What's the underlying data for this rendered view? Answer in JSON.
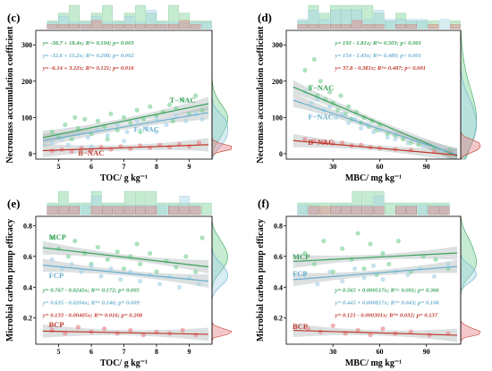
{
  "colors": {
    "green": "#3aa35a",
    "green_fill": "#7fd39a",
    "blue": "#6ab0cf",
    "blue_fill": "#a9d4e6",
    "red": "#c0392b",
    "red_fill": "#e6868a",
    "band": "#9aa6a8"
  },
  "chart_data": [
    {
      "panel": "(c)",
      "type": "scatter",
      "xlabel": "TOC/ g kg⁻¹",
      "ylabel": "Necromass accumulation coefficient",
      "xlim": [
        4.3,
        9.7
      ],
      "ylim": [
        -15,
        340
      ],
      "xticks": [
        5,
        6,
        7,
        8,
        9
      ],
      "yticks": [
        0,
        100,
        200,
        300
      ],
      "series": [
        {
          "name": "T−NAC",
          "color": "green",
          "intercept": -38.7,
          "slope": 18.4,
          "equation": "y= -38.7 + 18.4x; R²= 0.194; p= 0.003",
          "label_x": 8.4,
          "label_y": 140,
          "points": [
            [
              4.8,
              60
            ],
            [
              5.0,
              45
            ],
            [
              5.2,
              80
            ],
            [
              5.4,
              40
            ],
            [
              5.6,
              70
            ],
            [
              5.8,
              95
            ],
            [
              6.0,
              55
            ],
            [
              6.2,
              90
            ],
            [
              6.4,
              75
            ],
            [
              6.6,
              110
            ],
            [
              6.8,
              65
            ],
            [
              7.0,
              100
            ],
            [
              7.2,
              85
            ],
            [
              7.4,
              120
            ],
            [
              7.6,
              95
            ],
            [
              7.8,
              130
            ],
            [
              8.0,
              105
            ],
            [
              8.2,
              115
            ],
            [
              8.4,
              135
            ],
            [
              8.6,
              125
            ],
            [
              8.8,
              150
            ],
            [
              9.0,
              110
            ],
            [
              9.2,
              160
            ],
            [
              9.4,
              120
            ],
            [
              5.5,
              100
            ],
            [
              6.5,
              40
            ],
            [
              7.5,
              60
            ],
            [
              8.5,
              90
            ]
          ]
        },
        {
          "name": "F−NAC",
          "color": "blue",
          "intercept": -32.6,
          "slope": 15.2,
          "equation": "y= -32.6 + 15.2x; R²= 0.208; p= 0.002",
          "label_x": 7.3,
          "label_y": 60,
          "points": [
            [
              4.8,
              30
            ],
            [
              5.1,
              40
            ],
            [
              5.3,
              25
            ],
            [
              5.6,
              55
            ],
            [
              5.9,
              45
            ],
            [
              6.2,
              70
            ],
            [
              6.5,
              50
            ],
            [
              6.8,
              80
            ],
            [
              7.1,
              60
            ],
            [
              7.4,
              90
            ],
            [
              7.7,
              70
            ],
            [
              8.0,
              95
            ],
            [
              8.3,
              80
            ],
            [
              8.6,
              105
            ],
            [
              8.9,
              90
            ],
            [
              9.2,
              110
            ],
            [
              9.4,
              95
            ],
            [
              6.0,
              20
            ],
            [
              7.0,
              35
            ],
            [
              8.0,
              60
            ]
          ]
        },
        {
          "name": "B−NAC",
          "color": "red",
          "intercept": -6.14,
          "slope": 3.22,
          "equation": "y= -6.14 + 3.22x; R²= 0.121; p= 0.016",
          "label_x": 5.6,
          "label_y": -5,
          "points": [
            [
              4.8,
              8
            ],
            [
              5.1,
              12
            ],
            [
              5.4,
              6
            ],
            [
              5.7,
              15
            ],
            [
              6.0,
              10
            ],
            [
              6.3,
              18
            ],
            [
              6.6,
              12
            ],
            [
              6.9,
              20
            ],
            [
              7.2,
              14
            ],
            [
              7.5,
              22
            ],
            [
              7.8,
              16
            ],
            [
              8.1,
              24
            ],
            [
              8.4,
              18
            ],
            [
              8.7,
              26
            ],
            [
              9.0,
              20
            ],
            [
              9.3,
              30
            ]
          ]
        }
      ]
    },
    {
      "panel": "(d)",
      "type": "scatter",
      "xlabel": "MBC/ mg kg⁻¹",
      "ylabel": "Necromass accumulation coefficient",
      "xlim": [
        0,
        112
      ],
      "ylim": [
        -15,
        340
      ],
      "xticks": [
        30,
        60,
        90
      ],
      "yticks": [
        0,
        100,
        200,
        300
      ],
      "series": [
        {
          "name": "T−NAC",
          "color": "green",
          "intercept": 192,
          "slope": -1.81,
          "equation": "y= 192 - 1.81x; R²= 0.503; p< 0.001",
          "label_x": 14,
          "label_y": 175,
          "points": [
            [
              12,
              230
            ],
            [
              15,
              180
            ],
            [
              18,
              260
            ],
            [
              20,
              160
            ],
            [
              22,
              200
            ],
            [
              25,
              150
            ],
            [
              28,
              170
            ],
            [
              30,
              140
            ],
            [
              33,
              120
            ],
            [
              35,
              160
            ],
            [
              38,
              110
            ],
            [
              40,
              130
            ],
            [
              42,
              95
            ],
            [
              45,
              115
            ],
            [
              48,
              85
            ],
            [
              50,
              100
            ],
            [
              53,
              75
            ],
            [
              55,
              90
            ],
            [
              58,
              65
            ],
            [
              60,
              80
            ],
            [
              65,
              55
            ],
            [
              70,
              50
            ],
            [
              75,
              40
            ],
            [
              80,
              30
            ],
            [
              85,
              25
            ],
            [
              95,
              15
            ],
            [
              105,
              10
            ]
          ]
        },
        {
          "name": "F−NAC",
          "color": "blue",
          "intercept": 154,
          "slope": -1.43,
          "equation": "y= 154 - 1.43x; R²= 0.489; p< 0.001",
          "label_x": 14,
          "label_y": 95,
          "points": [
            [
              12,
              170
            ],
            [
              16,
              140
            ],
            [
              20,
              150
            ],
            [
              24,
              120
            ],
            [
              28,
              130
            ],
            [
              32,
              100
            ],
            [
              36,
              110
            ],
            [
              40,
              85
            ],
            [
              44,
              95
            ],
            [
              48,
              70
            ],
            [
              52,
              80
            ],
            [
              56,
              60
            ],
            [
              60,
              65
            ],
            [
              65,
              45
            ],
            [
              70,
              40
            ],
            [
              78,
              30
            ],
            [
              88,
              20
            ],
            [
              100,
              10
            ]
          ]
        },
        {
          "name": "B−NAC",
          "color": "red",
          "intercept": 37.8,
          "slope": -0.381,
          "equation": "y= 37.8 - 0.381x; R²= 0.487; p< 0.001",
          "label_x": 14,
          "label_y": 25,
          "points": [
            [
              12,
              40
            ],
            [
              18,
              35
            ],
            [
              24,
              32
            ],
            [
              30,
              28
            ],
            [
              36,
              30
            ],
            [
              42,
              22
            ],
            [
              48,
              24
            ],
            [
              54,
              18
            ],
            [
              60,
              16
            ],
            [
              70,
              12
            ],
            [
              80,
              10
            ],
            [
              95,
              6
            ],
            [
              105,
              3
            ]
          ]
        }
      ]
    },
    {
      "panel": "(e)",
      "type": "scatter",
      "xlabel": "TOC/ g kg⁻¹",
      "ylabel": "Microbial carbon pump efficacy",
      "xlim": [
        4.3,
        9.7
      ],
      "ylim": [
        0.03,
        0.86
      ],
      "xticks": [
        5,
        6,
        7,
        8,
        9
      ],
      "yticks": [
        0.2,
        0.4,
        0.6,
        0.8
      ],
      "series": [
        {
          "name": "MCP",
          "color": "green",
          "intercept": 0.767,
          "slope": -0.0245,
          "equation": "y= 0.767 - 0.0245x; R²= 0.172; p= 0.005",
          "label_x": 4.7,
          "label_y": 0.71,
          "points": [
            [
              4.8,
              0.72
            ],
            [
              5.0,
              0.65
            ],
            [
              5.3,
              0.6
            ],
            [
              5.5,
              0.7
            ],
            [
              5.8,
              0.62
            ],
            [
              6.0,
              0.55
            ],
            [
              6.2,
              0.66
            ],
            [
              6.5,
              0.58
            ],
            [
              6.8,
              0.63
            ],
            [
              7.0,
              0.52
            ],
            [
              7.2,
              0.6
            ],
            [
              7.5,
              0.55
            ],
            [
              7.8,
              0.62
            ],
            [
              8.0,
              0.5
            ],
            [
              8.3,
              0.57
            ],
            [
              8.6,
              0.53
            ],
            [
              8.9,
              0.6
            ],
            [
              9.2,
              0.5
            ],
            [
              9.4,
              0.72
            ],
            [
              7.4,
              0.68
            ]
          ]
        },
        {
          "name": "FCP",
          "color": "blue",
          "intercept": 0.635,
          "slope": -0.0204,
          "equation": "y= 0.635 - 0.0204x; R²= 0.146; p= 0.009",
          "label_x": 4.7,
          "label_y": 0.46,
          "points": [
            [
              4.8,
              0.58
            ],
            [
              5.1,
              0.52
            ],
            [
              5.4,
              0.55
            ],
            [
              5.7,
              0.5
            ],
            [
              6.0,
              0.54
            ],
            [
              6.3,
              0.47
            ],
            [
              6.6,
              0.52
            ],
            [
              6.9,
              0.45
            ],
            [
              7.2,
              0.5
            ],
            [
              7.5,
              0.44
            ],
            [
              7.8,
              0.48
            ],
            [
              8.1,
              0.42
            ],
            [
              8.4,
              0.47
            ],
            [
              8.7,
              0.4
            ],
            [
              9.0,
              0.46
            ],
            [
              9.3,
              0.42
            ]
          ]
        },
        {
          "name": "BCP",
          "color": "red",
          "intercept": 0.133,
          "slope": -0.00405,
          "equation": "y= 0.133 - 0.00405x; R²= 0.016; p= 0.208",
          "label_x": 4.7,
          "label_y": 0.14,
          "points": [
            [
              4.8,
              0.12
            ],
            [
              5.2,
              0.1
            ],
            [
              5.6,
              0.14
            ],
            [
              6.0,
              0.11
            ],
            [
              6.4,
              0.13
            ],
            [
              6.8,
              0.1
            ],
            [
              7.2,
              0.12
            ],
            [
              7.6,
              0.09
            ],
            [
              8.0,
              0.11
            ],
            [
              8.4,
              0.1
            ],
            [
              8.8,
              0.12
            ],
            [
              9.2,
              0.09
            ]
          ]
        }
      ]
    },
    {
      "panel": "(f)",
      "type": "scatter",
      "xlabel": "MBC/ mg kg⁻¹",
      "ylabel": "Microbial carbon pump efficacy",
      "xlim": [
        0,
        112
      ],
      "ylim": [
        0.03,
        0.86
      ],
      "xticks": [
        30,
        60,
        90
      ],
      "yticks": [
        0.2,
        0.4,
        0.6,
        0.8
      ],
      "series": [
        {
          "name": "MCP",
          "color": "green",
          "intercept": 0.565,
          "slope": 0.000517,
          "equation": "y= 0.565 + 0.000517x; R²< 0.001; p= 0.366",
          "label_x": 4,
          "label_y": 0.58,
          "points": [
            [
              12,
              0.62
            ],
            [
              18,
              0.55
            ],
            [
              24,
              0.7
            ],
            [
              30,
              0.5
            ],
            [
              36,
              0.65
            ],
            [
              42,
              0.58
            ],
            [
              46,
              0.75
            ],
            [
              50,
              0.52
            ],
            [
              54,
              0.68
            ],
            [
              58,
              0.48
            ],
            [
              62,
              0.62
            ],
            [
              66,
              0.55
            ],
            [
              72,
              0.7
            ],
            [
              80,
              0.5
            ],
            [
              88,
              0.6
            ],
            [
              96,
              0.58
            ],
            [
              104,
              0.52
            ]
          ]
        },
        {
          "name": "FCP",
          "color": "blue",
          "intercept": 0.445,
          "slope": 0.000817,
          "equation": "y= 0.445 + 0.000817x; R²= 0.043; p= 0.106",
          "label_x": 4,
          "label_y": 0.47,
          "points": [
            [
              12,
              0.48
            ],
            [
              20,
              0.42
            ],
            [
              28,
              0.5
            ],
            [
              36,
              0.44
            ],
            [
              44,
              0.52
            ],
            [
              50,
              0.46
            ],
            [
              56,
              0.54
            ],
            [
              62,
              0.45
            ],
            [
              70,
              0.5
            ],
            [
              78,
              0.48
            ],
            [
              86,
              0.52
            ],
            [
              95,
              0.47
            ],
            [
              104,
              0.55
            ]
          ]
        },
        {
          "name": "BCP",
          "color": "red",
          "intercept": 0.121,
          "slope": -0.000301,
          "equation": "y= 0.121 - 0.000301x; R²= 0.032; p= 0.137",
          "label_x": 4,
          "label_y": 0.13,
          "points": [
            [
              14,
              0.13
            ],
            [
              22,
              0.11
            ],
            [
              30,
              0.15
            ],
            [
              38,
              0.1
            ],
            [
              46,
              0.12
            ],
            [
              54,
              0.09
            ],
            [
              62,
              0.13
            ],
            [
              70,
              0.1
            ],
            [
              80,
              0.11
            ],
            [
              92,
              0.09
            ],
            [
              104,
              0.1
            ]
          ]
        }
      ]
    }
  ]
}
